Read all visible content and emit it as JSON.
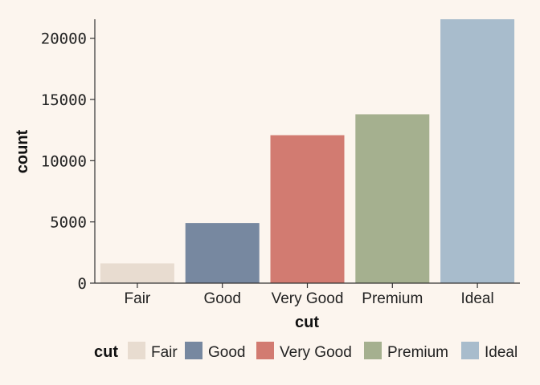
{
  "chart_data": {
    "type": "bar",
    "xlabel": "cut",
    "ylabel": "count",
    "categories": [
      "Fair",
      "Good",
      "Very Good",
      "Premium",
      "Ideal"
    ],
    "values": [
      1610,
      4906,
      12082,
      13791,
      21551
    ],
    "colors": [
      "#e8dcd0",
      "#7788a0",
      "#d27b71",
      "#a5b08f",
      "#a8bccc"
    ],
    "ylim": [
      0,
      21551
    ],
    "yticks": [
      0,
      5000,
      10000,
      15000,
      20000
    ],
    "grid": false,
    "legend": {
      "title": "cut",
      "position": "bottom",
      "entries": [
        "Fair",
        "Good",
        "Very Good",
        "Premium",
        "Ideal"
      ]
    }
  }
}
